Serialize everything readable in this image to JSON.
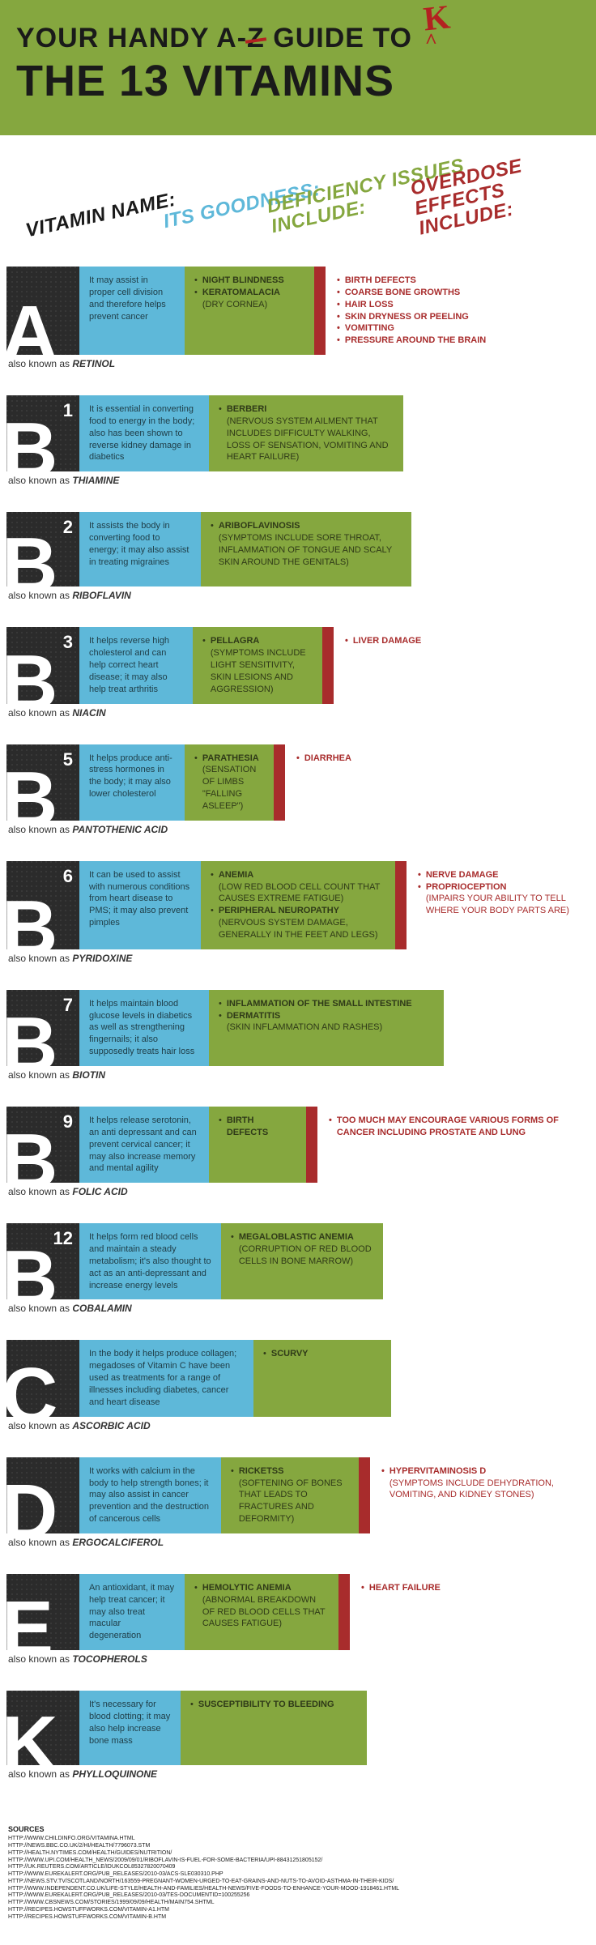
{
  "header": {
    "line1_pre": "YOUR HANDY A-",
    "line1_strike": "Z",
    "line1_post": " GUIDE TO",
    "line2": "THE 13 VITAMINS",
    "annot_k": "K",
    "annot_caret": "^"
  },
  "columns": {
    "name": "VITAMIN NAME:",
    "goodness": "ITS GOODNESS:",
    "deficiency": "DEFICIENCY ISSUES\nINCLUDE:",
    "overdose": "OVERDOSE EFFECTS\nINCLUDE:"
  },
  "aka_label": "also known as",
  "widths_comment": "good/def/overbar widths in px; over_text flex-grows when present",
  "vitamins": [
    {
      "letter": "A",
      "sup": "",
      "aka": "RETINOL",
      "goodness": "It may assist in proper cell division and therefore helps prevent cancer",
      "good_w": 130,
      "deficiency": [
        {
          "t": "NIGHT BLINDNESS"
        },
        {
          "t": "KERATOMALACIA",
          "s": "(DRY CORNEA)"
        }
      ],
      "def_w": 160,
      "overbar_w": 14,
      "overdose": [
        {
          "t": "BIRTH DEFECTS"
        },
        {
          "t": "COARSE BONE GROWTHS"
        },
        {
          "t": "HAIR LOSS"
        },
        {
          "t": "SKIN DRYNESS OR PEELING"
        },
        {
          "t": "VOMITTING"
        },
        {
          "t": "PRESSURE AROUND THE BRAIN"
        }
      ]
    },
    {
      "letter": "B",
      "sup": "1",
      "aka": "THIAMINE",
      "goodness": "It is essential in converting food to energy in the body; also has been shown to reverse kidney damage in diabetics",
      "good_w": 160,
      "deficiency": [
        {
          "t": "BERBERI",
          "s": "(NERVOUS SYSTEM AILMENT THAT INCLUDES DIFFICULTY WALKING, LOSS OF SENSATION, VOMITING AND HEART FAILURE)"
        }
      ],
      "def_w": 240,
      "overbar_w": 0,
      "overdose": []
    },
    {
      "letter": "B",
      "sup": "2",
      "aka": "RIBOFLAVIN",
      "goodness": "It assists the body in converting food to energy; it may also assist in treating migraines",
      "good_w": 150,
      "deficiency": [
        {
          "t": "ARIBOFLAVINOSIS",
          "s": "(SYMPTOMS INCLUDE SORE THROAT, INFLAMMATION OF TONGUE AND SCALY SKIN AROUND THE GENITALS)"
        }
      ],
      "def_w": 260,
      "overbar_w": 0,
      "overdose": []
    },
    {
      "letter": "B",
      "sup": "3",
      "aka": "NIACIN",
      "goodness": "It helps reverse high cholesterol and can help correct heart disease; it may also help treat arthritis",
      "good_w": 140,
      "deficiency": [
        {
          "t": "PELLAGRA",
          "s": "(SYMPTOMS INCLUDE LIGHT SENSITIVITY, SKIN LESIONS AND AGGRESSION)"
        }
      ],
      "def_w": 160,
      "overbar_w": 14,
      "overdose": [
        {
          "t": "LIVER DAMAGE"
        }
      ]
    },
    {
      "letter": "B",
      "sup": "5",
      "aka": "PANTOTHENIC ACID",
      "goodness": "It helps produce anti-stress hormones in the body; it may also lower cholesterol",
      "good_w": 130,
      "deficiency": [
        {
          "t": "PARATHESIA",
          "s": "(SENSATION OF LIMBS \"FALLING ASLEEP\")"
        }
      ],
      "def_w": 110,
      "overbar_w": 14,
      "overdose": [
        {
          "t": "DIARRHEA"
        }
      ]
    },
    {
      "letter": "B",
      "sup": "6",
      "aka": "PYRIDOXINE",
      "goodness": "It can be used to assist with numerous conditions from heart disease to PMS; it may also prevent pimples",
      "good_w": 150,
      "deficiency": [
        {
          "t": "ANEMIA",
          "s": "(LOW RED BLOOD CELL COUNT THAT CAUSES EXTREME FATIGUE)"
        },
        {
          "t": "PERIPHERAL NEUROPATHY",
          "s": "(NERVOUS SYSTEM DAMAGE, GENERALLY IN THE FEET AND LEGS)"
        }
      ],
      "def_w": 240,
      "overbar_w": 14,
      "overdose": [
        {
          "t": "NERVE DAMAGE"
        },
        {
          "t": "PROPRIOCEPTION",
          "s": "(IMPAIRS YOUR ABILITY TO TELL WHERE YOUR BODY PARTS ARE)"
        }
      ]
    },
    {
      "letter": "B",
      "sup": "7",
      "aka": "BIOTIN",
      "goodness": "It helps maintain blood glucose levels in diabetics as well as strengthening fingernails; it also supposedly treats hair loss",
      "good_w": 160,
      "deficiency": [
        {
          "t": "INFLAMMATION OF THE SMALL INTESTINE"
        },
        {
          "t": "DERMATITIS",
          "s": "(SKIN INFLAMMATION AND RASHES)"
        }
      ],
      "def_w": 290,
      "overbar_w": 0,
      "overdose": []
    },
    {
      "letter": "B",
      "sup": "9",
      "aka": "FOLIC ACID",
      "goodness": "It helps release serotonin, an anti depressant and can prevent cervical cancer; it may also increase memory and mental agility",
      "good_w": 160,
      "deficiency": [
        {
          "t": "BIRTH DEFECTS"
        }
      ],
      "def_w": 120,
      "overbar_w": 14,
      "overdose": [
        {
          "t": "TOO MUCH MAY ENCOURAGE VARIOUS FORMS OF CANCER INCLUDING PROSTATE AND LUNG"
        }
      ]
    },
    {
      "letter": "B",
      "sup": "12",
      "aka": "COBALAMIN",
      "goodness": "It helps form red blood cells and maintain a steady metabolism; it's also thought to act as an anti-depressant and increase energy levels",
      "good_w": 175,
      "deficiency": [
        {
          "t": "MEGALOBLASTIC ANEMIA",
          "s": "(CORRUPTION OF RED BLOOD CELLS IN BONE MARROW)"
        }
      ],
      "def_w": 200,
      "overbar_w": 0,
      "overdose": []
    },
    {
      "letter": "C",
      "sup": "",
      "aka": "ASCORBIC ACID",
      "goodness": "In the body it helps produce collagen; megadoses of Vitamin C have been used as treatments for a range of illnesses including diabetes, cancer and heart disease",
      "good_w": 215,
      "deficiency": [
        {
          "t": "SCURVY"
        }
      ],
      "def_w": 170,
      "overbar_w": 0,
      "overdose": []
    },
    {
      "letter": "D",
      "sup": "",
      "aka": "ERGOCALCIFEROL",
      "goodness": "It works with calcium in the body to help strength bones; it may also assist in cancer prevention and the destruction of cancerous cells",
      "good_w": 175,
      "deficiency": [
        {
          "t": "RICKETSS",
          "s": "(SOFTENING OF BONES THAT LEADS TO FRACTURES AND DEFORMITY)"
        }
      ],
      "def_w": 170,
      "overbar_w": 14,
      "overdose": [
        {
          "t": "HYPERVITAMINOSIS D",
          "s": "(SYMPTOMS INCLUDE DEHYDRATION, VOMITING, AND KIDNEY STONES)"
        }
      ]
    },
    {
      "letter": "E",
      "sup": "",
      "aka": "TOCOPHEROLS",
      "goodness": "An antioxidant, it may help treat cancer; it may also treat macular degeneration",
      "good_w": 130,
      "deficiency": [
        {
          "t": "HEMOLYTIC ANEMIA",
          "s": "(ABNORMAL BREAKDOWN OF RED BLOOD CELLS THAT CAUSES FATIGUE)"
        }
      ],
      "def_w": 190,
      "overbar_w": 14,
      "overdose": [
        {
          "t": "HEART FAILURE"
        }
      ]
    },
    {
      "letter": "K",
      "sup": "",
      "aka": "PHYLLOQUINONE",
      "goodness": "It's necessary for blood clotting; it may also help increase bone mass",
      "good_w": 125,
      "deficiency": [
        {
          "t": "SUSCEPTIBILITY TO BLEEDING"
        }
      ],
      "def_w": 230,
      "overbar_w": 0,
      "overdose": []
    }
  ],
  "sources": {
    "head": "SOURCES",
    "urls": [
      "HTTP://WWW.CHILDINFO.ORG/VITAMINA.HTML",
      "HTTP://NEWS.BBC.CO.UK/2/HI/HEALTH/7796073.STM",
      "HTTP://HEALTH.NYTIMES.COM/HEALTH/GUIDES/NUTRITION/",
      "HTTP://WWW.UPI.COM/HEALTH_NEWS/2009/09/01/RIBOFLAVIN-IS-FUEL-FOR-SOME-BACTERIA/UPI-88431251805152/",
      "HTTP://UK.REUTERS.COM/ARTICLE/IDUKCOL85327820070409",
      "HTTP://WWW.EUREKALERT.ORG/PUB_RELEASES/2010-03/ACS-SLE030310.PHP",
      "HTTP://NEWS.STV.TV/SCOTLAND/NORTH/163559-PREGNANT-WOMEN-URGED-TO-EAT-GRAINS-AND-NUTS-TO-AVOID-ASTHMA-IN-THEIR-KIDS/",
      "HTTP://WWW.INDEPENDENT.CO.UK/LIFE-STYLE/HEALTH-AND-FAMILIES/HEALTH-NEWS/FIVE-FOODS-TO-ENHANCE-YOUR-MOOD-1918461.HTML",
      "HTTP://WWW.EUREKALERT.ORG/PUB_RELEASES/2010-03/TES-DOCUMENTID=100255256",
      "HTTP://WWW.CBSNEWS.COM/STORIES/1999/09/09/HEALTH/MAIN754.SHTML",
      "HTTP://RECIPES.HOWSTUFFWORKS.COM/VITAMIN-A1.HTM",
      "HTTP://RECIPES.HOWSTUFFWORKS.COM/VITAMIN-B.HTM"
    ]
  }
}
